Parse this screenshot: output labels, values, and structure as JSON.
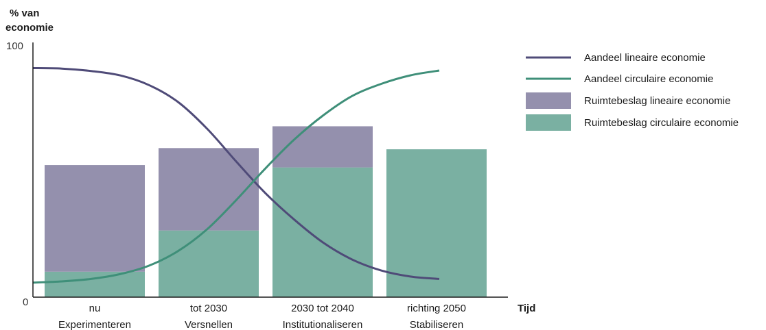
{
  "chart_data": {
    "type": "bar",
    "ylabel_lines": [
      "% van",
      "economie"
    ],
    "xlabel": "Tijd",
    "ylim": [
      0,
      100
    ],
    "y_ticks": [
      "0",
      "100"
    ],
    "categories": [
      {
        "line1": "nu",
        "line2": "Experimenteren"
      },
      {
        "line1": "tot 2030",
        "line2": "Versnellen"
      },
      {
        "line1": "2030 tot 2040",
        "line2": "Institutionaliseren"
      },
      {
        "line1": "richting 2050",
        "line2": "Stabiliseren"
      }
    ],
    "bar_series": [
      {
        "name": "Ruimtebeslag lineaire economie",
        "color": "#9490ad",
        "values": [
          44,
          34,
          17,
          0
        ]
      },
      {
        "name": "Ruimtebeslag circulaire economie",
        "color": "#7ab0a2",
        "values": [
          10.5,
          27.5,
          53.5,
          61
        ]
      }
    ],
    "line_series": [
      {
        "name": "Aandeel lineaire economie",
        "color": "#4f4b78",
        "x": [
          0,
          0.25,
          0.5,
          0.75,
          1.0,
          1.25,
          1.5,
          1.75,
          2.0,
          2.25,
          2.5,
          2.75,
          3.0,
          3.25,
          3.5
        ],
        "y": [
          94.5,
          94.3,
          93.3,
          91.5,
          87.5,
          80.5,
          69.5,
          56,
          43,
          32,
          22.5,
          15.5,
          11,
          8.5,
          7.5
        ]
      },
      {
        "name": "Aandeel circulaire economie",
        "color": "#3f8f79",
        "x": [
          0,
          0.25,
          0.5,
          0.75,
          1.0,
          1.25,
          1.5,
          1.75,
          2.0,
          2.25,
          2.5,
          2.75,
          3.0,
          3.25,
          3.5
        ],
        "y": [
          6,
          6.5,
          7.5,
          9.5,
          13,
          19,
          28,
          40,
          53,
          65,
          75,
          83,
          88,
          91.5,
          93.5
        ]
      }
    ],
    "legend_position": "top-right"
  }
}
